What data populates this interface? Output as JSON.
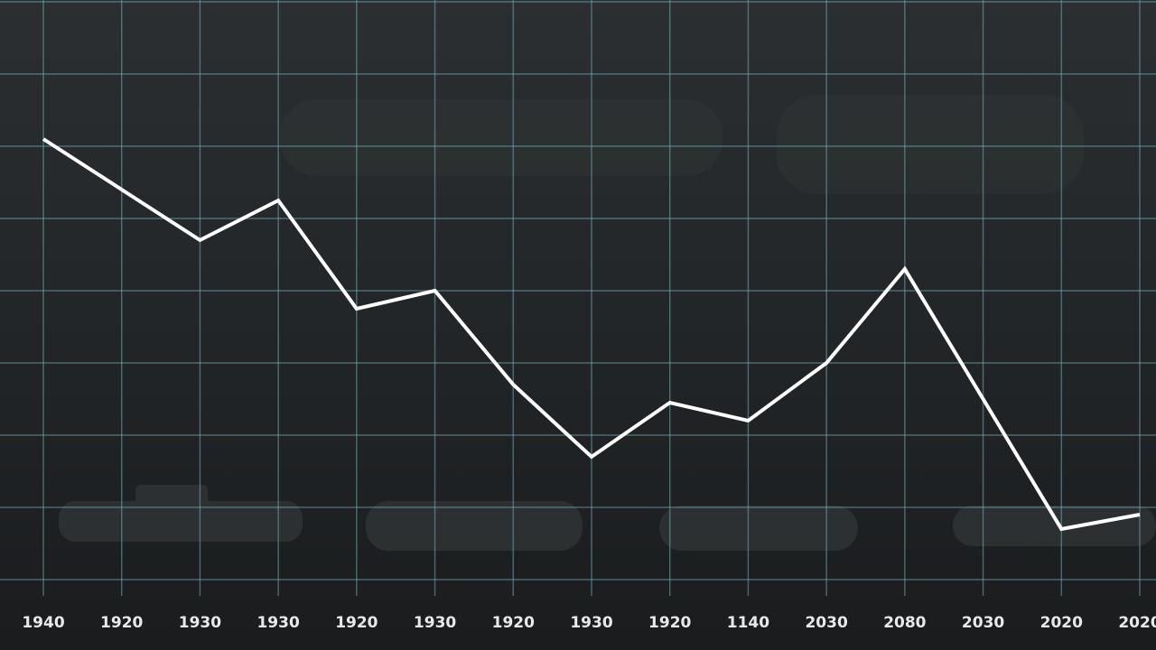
{
  "chart_data": {
    "type": "line",
    "categories": [
      "1940",
      "1920",
      "1930",
      "1930",
      "1920",
      "1930",
      "1920",
      "1930",
      "1920",
      "1140",
      "2030",
      "2080",
      "2030",
      "2020",
      "2020"
    ],
    "values": [
      6.1,
      5.4,
      4.7,
      5.25,
      3.75,
      4.0,
      2.7,
      1.7,
      2.45,
      2.2,
      3.0,
      4.3,
      2.5,
      0.7,
      0.9
    ],
    "color": "#ffffff",
    "ylim": [
      0,
      8
    ],
    "yticks": [
      0,
      1,
      2,
      3,
      4,
      5,
      6,
      7,
      8
    ],
    "grid": true
  }
}
